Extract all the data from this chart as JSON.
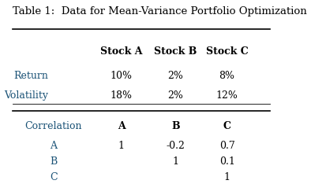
{
  "title": "Table 1:  Data for Mean-Variance Portfolio Optimization",
  "title_color": "#000000",
  "background_color": "#ffffff",
  "header_row": [
    "",
    "Stock A",
    "Stock B",
    "Stock C"
  ],
  "data_rows": [
    [
      "Return",
      "10%",
      "2%",
      "8%"
    ],
    [
      "Volatility",
      "18%",
      "2%",
      "12%"
    ]
  ],
  "corr_header": [
    "Correlation",
    "A",
    "B",
    "C"
  ],
  "corr_rows": [
    [
      "A",
      "1",
      "-0.2",
      "0.7"
    ],
    [
      "B",
      "",
      "1",
      "0.1"
    ],
    [
      "C",
      "",
      "",
      "1"
    ]
  ],
  "label_color": "#1a5276",
  "value_color": "#000000",
  "header_color": "#000000",
  "line_color": "#000000",
  "font_size": 9,
  "title_font_size": 9.5
}
